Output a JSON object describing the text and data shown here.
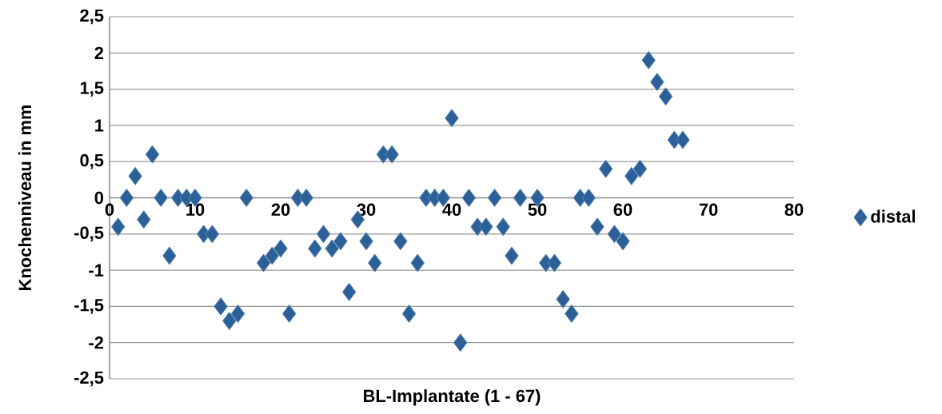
{
  "chart_data": {
    "type": "scatter",
    "xlabel": "BL-Implantate (1 - 67)",
    "ylabel": "Knochenniveau in mm",
    "xlim": [
      0,
      80
    ],
    "xticks": [
      0,
      10,
      20,
      30,
      40,
      50,
      60,
      70,
      80
    ],
    "ylim": [
      -2.5,
      2.5
    ],
    "yticks": [
      {
        "value": -2.5,
        "label": "-2,5"
      },
      -2,
      {
        "value": -1.5,
        "label": "-1,5"
      },
      -1,
      {
        "value": -0.5,
        "label": "-0,5"
      },
      0,
      {
        "value": 0.5,
        "label": "0,5"
      },
      1,
      {
        "value": 1.5,
        "label": "1,5"
      },
      2,
      {
        "value": 2.5,
        "label": "2,5"
      }
    ],
    "grid": "y",
    "legend": "right",
    "marker": "diamond",
    "series": [
      {
        "name": "distal",
        "color": "#2b6198",
        "x": [
          1,
          2,
          3,
          4,
          5,
          6,
          7,
          8,
          9,
          10,
          11,
          12,
          13,
          14,
          15,
          16,
          18,
          19,
          20,
          21,
          22,
          23,
          24,
          25,
          26,
          27,
          28,
          29,
          30,
          31,
          32,
          33,
          34,
          35,
          36,
          37,
          38,
          39,
          40,
          41,
          42,
          43,
          44,
          45,
          46,
          47,
          48,
          50,
          51,
          52,
          53,
          54,
          55,
          56,
          57,
          58,
          59,
          60,
          61,
          62,
          63,
          64,
          65,
          66,
          67
        ],
        "values": [
          -0.4,
          0,
          0.3,
          -0.3,
          0.6,
          0,
          -0.8,
          0,
          0,
          0,
          -0.5,
          -0.5,
          -1.5,
          -1.7,
          -1.6,
          0,
          -0.9,
          -0.8,
          -0.7,
          -1.6,
          0,
          0,
          -0.7,
          -0.5,
          -0.7,
          -0.6,
          -1.3,
          -0.3,
          -0.6,
          -0.9,
          0.6,
          0.6,
          -0.6,
          -1.6,
          -0.9,
          0,
          0,
          0,
          1.1,
          -2,
          0,
          -0.4,
          -0.4,
          0,
          -0.4,
          -0.8,
          0,
          0,
          -0.9,
          -0.9,
          -1.4,
          -1.6,
          0,
          0,
          -0.4,
          0.4,
          -0.5,
          -0.6,
          0.3,
          0.4,
          1.9,
          1.6,
          1.4,
          0.8,
          0.8
        ]
      }
    ]
  }
}
